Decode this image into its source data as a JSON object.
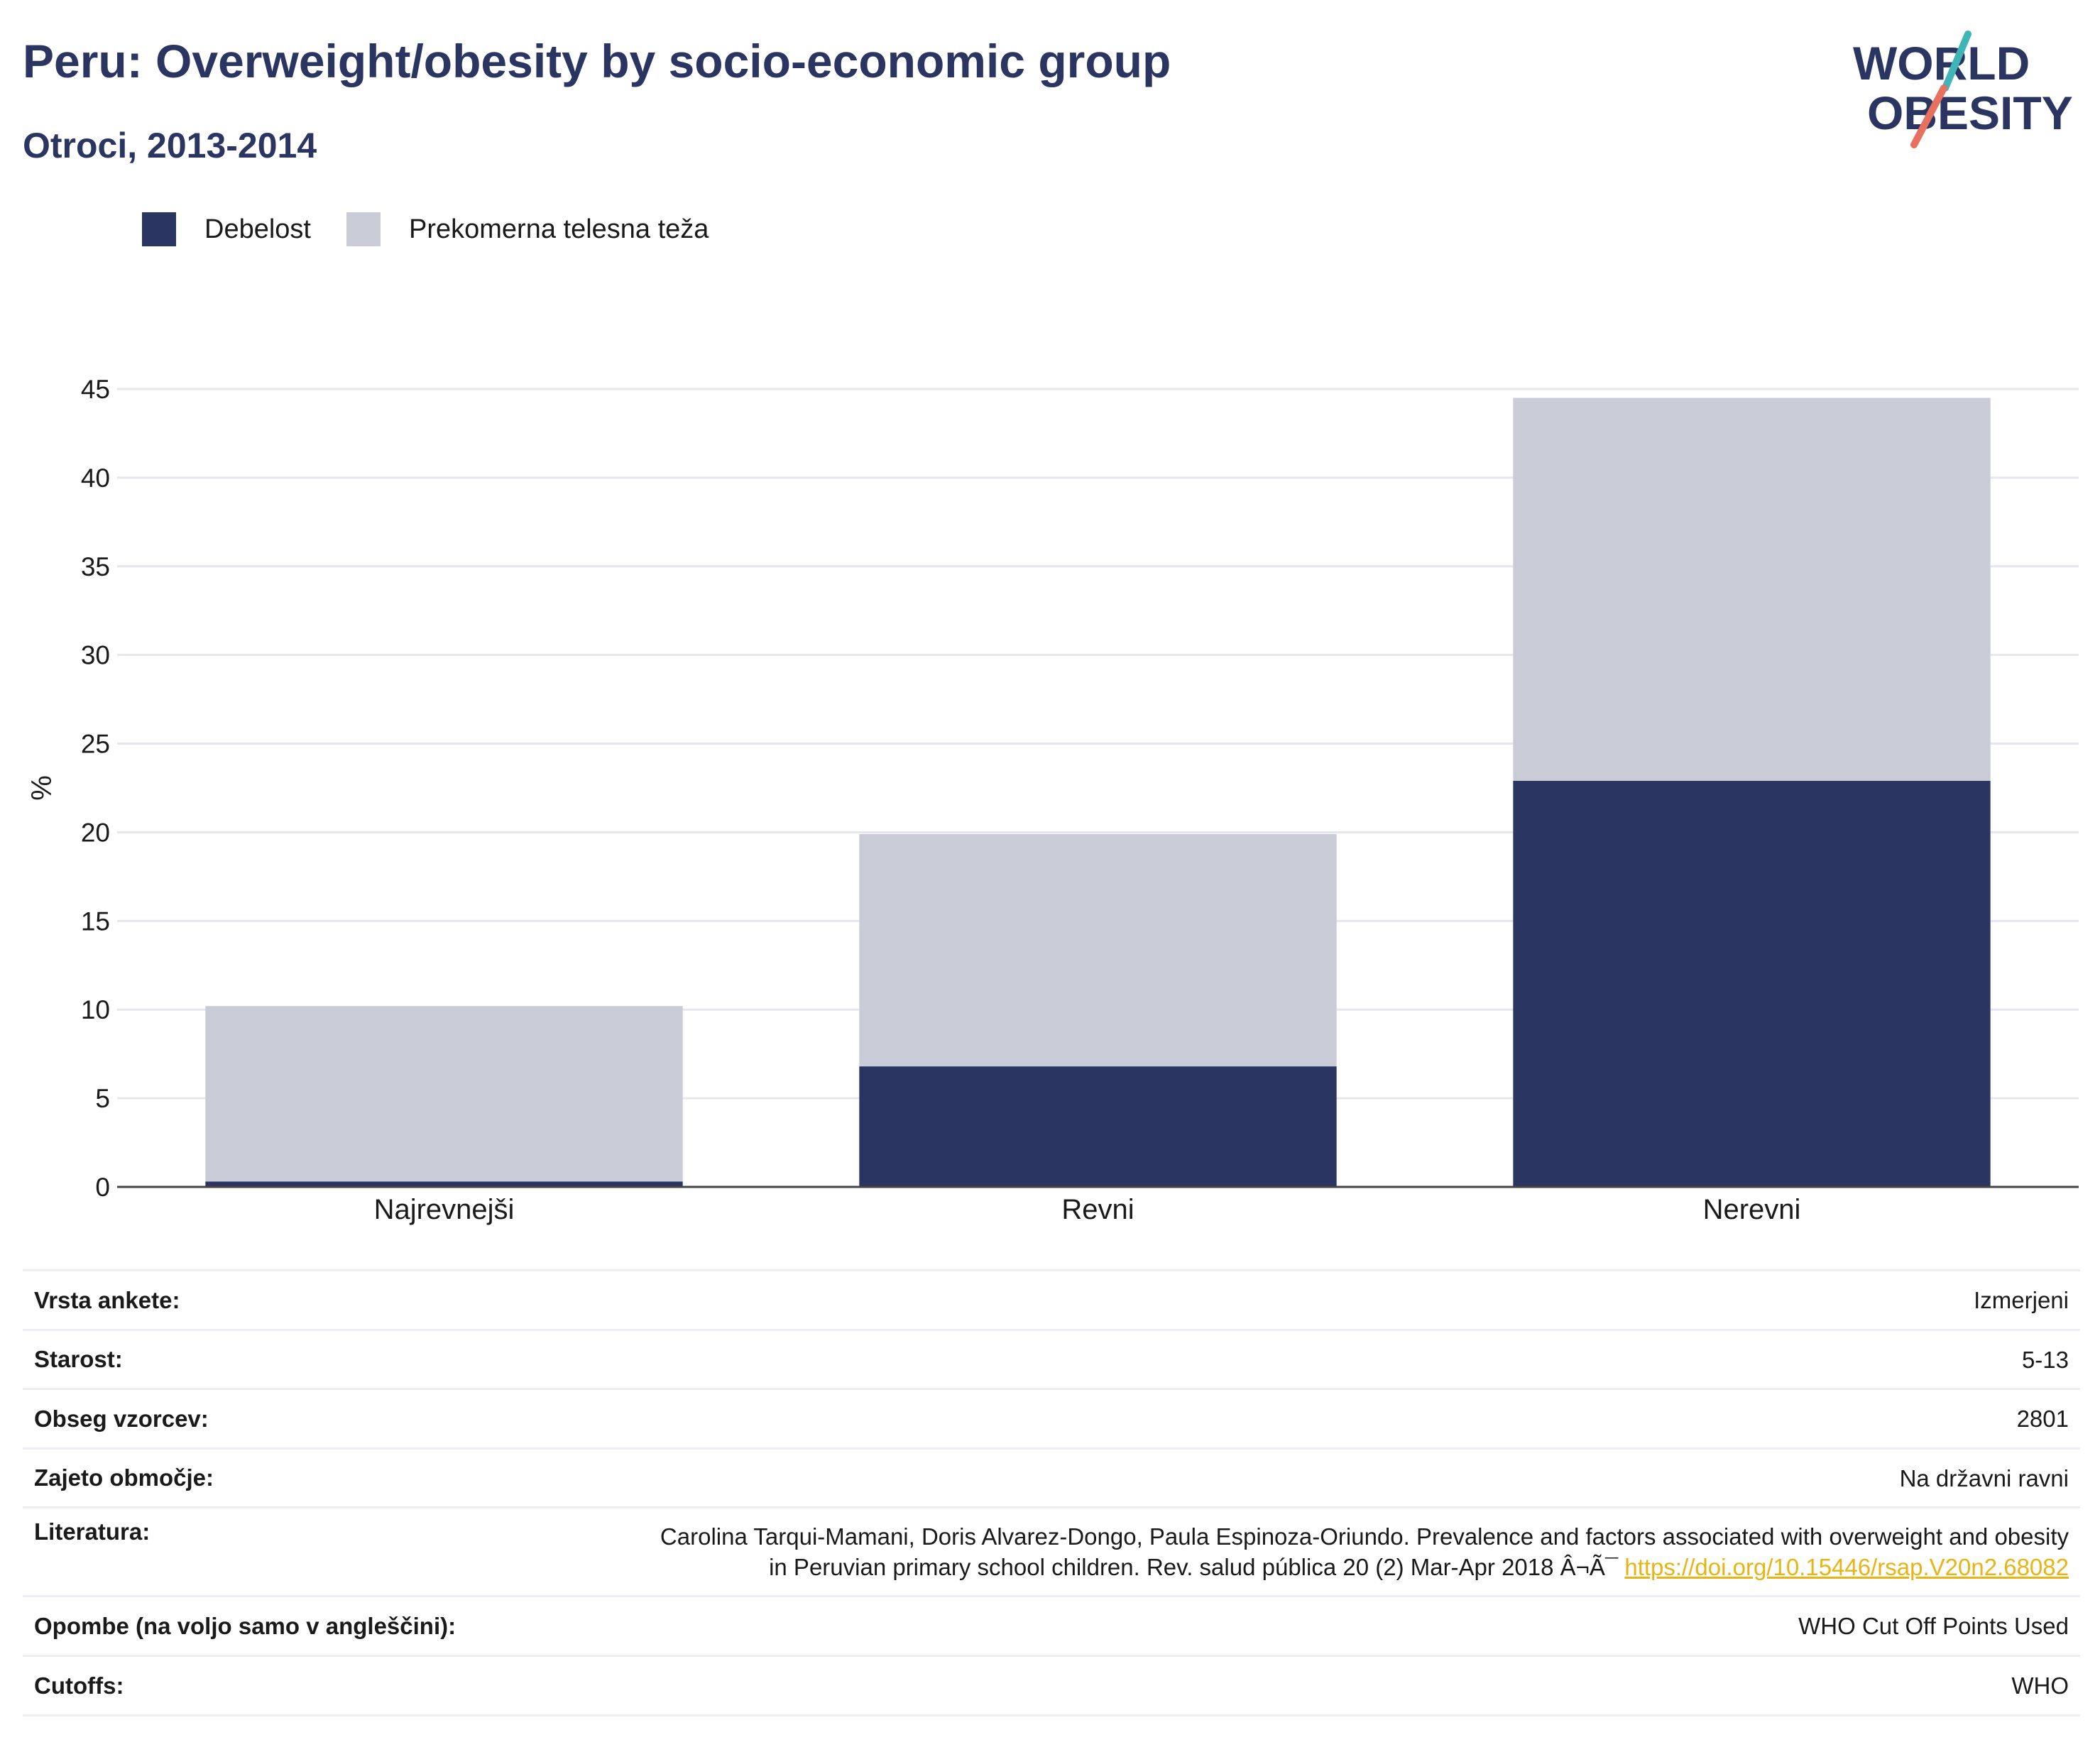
{
  "header": {
    "title": "Peru: Overweight/obesity by socio-economic group",
    "subtitle": "Otroci, 2013-2014"
  },
  "logo": {
    "line1": "WORLD",
    "line2": "OBESITY"
  },
  "colors": {
    "obesity": "#2a3561",
    "overweight": "#c9cbd6",
    "link": "#e7b416",
    "title": "#2a3561"
  },
  "legend": [
    {
      "label": "Debelost",
      "color": "#2a3561"
    },
    {
      "label": "Prekomerna telesna teža",
      "color": "#c9cbd6"
    }
  ],
  "chart_data": {
    "type": "bar",
    "stacked": true,
    "ylabel": "%",
    "ylim": [
      0,
      45
    ],
    "yticks": [
      0,
      5,
      10,
      15,
      20,
      25,
      30,
      35,
      40,
      45
    ],
    "grid": true,
    "legend_position": "top-left",
    "categories": [
      "Najrevnejši",
      "Revni",
      "Nerevni"
    ],
    "series": [
      {
        "name": "Debelost",
        "values": [
          0.3,
          6.8,
          22.9
        ]
      },
      {
        "name": "Prekomerna telesna teža",
        "values": [
          9.9,
          13.1,
          21.6
        ]
      }
    ]
  },
  "meta": {
    "rows": [
      {
        "key": "Vrsta ankete:",
        "value": "Izmerjeni"
      },
      {
        "key": "Starost:",
        "value": "5-13"
      },
      {
        "key": "Obseg vzorcev:",
        "value": "2801"
      },
      {
        "key": "Zajeto območje:",
        "value": "Na državni ravni"
      },
      {
        "key": "Literatura:",
        "value_line1": "Carolina Tarqui-Mamani, Doris Alvarez-Dongo, Paula Espinoza-Oriundo. Prevalence and factors associated with overweight and obesity",
        "value_line2": "in Peruvian primary school children. Rev. salud pública 20 (2) Mar-Apr 2018 Â¬Ã¯",
        "link": "https://doi.org/10.15446/rsap.V20n2.68082"
      },
      {
        "key": "Opombe (na voljo samo v angleščini):",
        "value": "WHO Cut Off Points Used"
      },
      {
        "key": "Cutoffs:",
        "value": "WHO"
      }
    ]
  }
}
